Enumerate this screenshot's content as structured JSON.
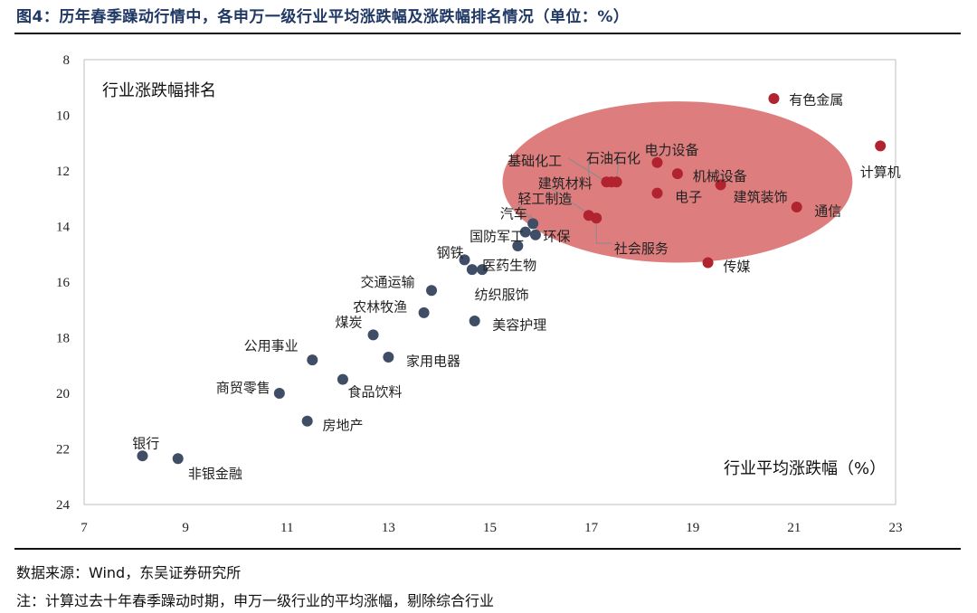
{
  "header": {
    "title": "图4：历年春季躁动行情中，各申万一级行业平均涨跌幅及涨跌幅排名情况（单位：%）"
  },
  "footer": {
    "source": "数据来源：Wind，东吴证券研究所",
    "note": "注：计算过去十年春季躁动时期，申万一级行业的平均涨幅，剔除综合行业"
  },
  "chart_data": {
    "type": "scatter",
    "xlabel": "行业平均涨跌幅（%）",
    "ylabel": "行业涨跌幅排名",
    "xlim": [
      7,
      23
    ],
    "ylim": [
      8,
      24
    ],
    "y_inverted": true,
    "x_ticks": [
      7,
      9,
      11,
      13,
      15,
      17,
      19,
      21,
      23
    ],
    "y_ticks": [
      8,
      10,
      12,
      14,
      16,
      18,
      20,
      22,
      24
    ],
    "grid": false,
    "highlight_ellipse": {
      "cx": 18.7,
      "cy": 12.4,
      "rx": 3.45,
      "ry": 2.9,
      "color": "#d65c5c"
    },
    "colors": {
      "normal": "#3f4d66",
      "highlight": "#b22330"
    },
    "points": [
      {
        "name": "有色金属",
        "x": 20.6,
        "y": 9.4,
        "group": "highlight"
      },
      {
        "name": "计算机",
        "x": 22.7,
        "y": 11.1,
        "group": "highlight"
      },
      {
        "name": "电力设备",
        "x": 18.3,
        "y": 11.7,
        "group": "highlight"
      },
      {
        "name": "机械设备",
        "x": 18.7,
        "y": 12.1,
        "group": "highlight"
      },
      {
        "name": "基础化工",
        "x": 17.3,
        "y": 12.4,
        "group": "highlight"
      },
      {
        "name": "石油石化",
        "x": 17.5,
        "y": 12.4,
        "group": "highlight"
      },
      {
        "name": "建筑材料",
        "x": 17.4,
        "y": 12.4,
        "group": "highlight"
      },
      {
        "name": "建筑装饰",
        "x": 19.55,
        "y": 12.5,
        "group": "highlight"
      },
      {
        "name": "电子",
        "x": 18.3,
        "y": 12.8,
        "group": "highlight"
      },
      {
        "name": "通信",
        "x": 21.05,
        "y": 13.3,
        "group": "highlight"
      },
      {
        "name": "社会服务",
        "x": 16.95,
        "y": 13.6,
        "group": "highlight"
      },
      {
        "name": "社会服务-2",
        "x": 17.1,
        "y": 13.7,
        "group": "highlight"
      },
      {
        "name": "传媒",
        "x": 19.3,
        "y": 15.3,
        "group": "highlight"
      },
      {
        "name": "汽车",
        "x": 15.7,
        "y": 14.2,
        "group": "normal"
      },
      {
        "name": "轻工制造",
        "x": 15.85,
        "y": 13.9,
        "group": "normal"
      },
      {
        "name": "环保",
        "x": 15.9,
        "y": 14.3,
        "group": "normal"
      },
      {
        "name": "国防军工",
        "x": 15.55,
        "y": 14.7,
        "group": "normal"
      },
      {
        "name": "钢铁",
        "x": 14.5,
        "y": 15.2,
        "group": "normal"
      },
      {
        "name": "医药生物",
        "x": 14.65,
        "y": 15.55,
        "group": "normal"
      },
      {
        "name": "纺织服饰",
        "x": 14.85,
        "y": 15.55,
        "group": "normal"
      },
      {
        "name": "交通运输",
        "x": 13.85,
        "y": 16.3,
        "group": "normal"
      },
      {
        "name": "农林牧渔",
        "x": 13.7,
        "y": 17.1,
        "group": "normal"
      },
      {
        "name": "美容护理",
        "x": 14.7,
        "y": 17.4,
        "group": "normal"
      },
      {
        "name": "煤炭",
        "x": 12.7,
        "y": 17.9,
        "group": "normal"
      },
      {
        "name": "家用电器",
        "x": 13.0,
        "y": 18.7,
        "group": "normal"
      },
      {
        "name": "公用事业",
        "x": 11.5,
        "y": 18.8,
        "group": "normal"
      },
      {
        "name": "食品饮料",
        "x": 12.1,
        "y": 19.5,
        "group": "normal"
      },
      {
        "name": "商贸零售",
        "x": 10.85,
        "y": 20.0,
        "group": "normal"
      },
      {
        "name": "房地产",
        "x": 11.4,
        "y": 21.0,
        "group": "normal"
      },
      {
        "name": "银行",
        "x": 8.15,
        "y": 22.25,
        "group": "normal"
      },
      {
        "name": "非银金融",
        "x": 8.85,
        "y": 22.35,
        "group": "normal"
      }
    ],
    "labels": [
      {
        "text": "有色金属",
        "x": 20.9,
        "y": 9.45
      },
      {
        "text": "计算机",
        "x": 22.3,
        "y": 12.05
      },
      {
        "text": "电力设备",
        "x": 18.05,
        "y": 11.25
      },
      {
        "text": "机械设备",
        "x": 19.0,
        "y": 12.2
      },
      {
        "text": "基础化工",
        "x": 15.35,
        "y": 11.65
      },
      {
        "text": "石油石化",
        "x": 16.9,
        "y": 11.55
      },
      {
        "text": "建筑材料",
        "x": 15.95,
        "y": 12.45
      },
      {
        "text": "建筑装饰",
        "x": 19.8,
        "y": 12.95
      },
      {
        "text": "电子",
        "x": 18.65,
        "y": 12.95
      },
      {
        "text": "通信",
        "x": 21.4,
        "y": 13.45
      },
      {
        "text": "社会服务",
        "x": 17.45,
        "y": 14.8
      },
      {
        "text": "传媒",
        "x": 19.6,
        "y": 15.45
      },
      {
        "text": "汽车",
        "x": 15.2,
        "y": 13.55
      },
      {
        "text": "轻工制造",
        "x": 15.55,
        "y": 13.0
      },
      {
        "text": "环保",
        "x": 16.05,
        "y": 14.35
      },
      {
        "text": "国防军工",
        "x": 14.6,
        "y": 14.35
      },
      {
        "text": "钢铁",
        "x": 13.95,
        "y": 14.95
      },
      {
        "text": "医药生物",
        "x": 14.85,
        "y": 15.4
      },
      {
        "text": "纺织服饰",
        "x": 14.7,
        "y": 16.45
      },
      {
        "text": "交通运输",
        "x": 12.45,
        "y": 16.0
      },
      {
        "text": "农林牧渔",
        "x": 12.3,
        "y": 16.9
      },
      {
        "text": "美容护理",
        "x": 15.05,
        "y": 17.55
      },
      {
        "text": "煤炭",
        "x": 11.95,
        "y": 17.45
      },
      {
        "text": "家用电器",
        "x": 13.35,
        "y": 18.85
      },
      {
        "text": "公用事业",
        "x": 10.15,
        "y": 18.3
      },
      {
        "text": "食品饮料",
        "x": 12.2,
        "y": 19.95
      },
      {
        "text": "商贸零售",
        "x": 9.6,
        "y": 19.8
      },
      {
        "text": "房地产",
        "x": 11.7,
        "y": 21.15
      },
      {
        "text": "银行",
        "x": 7.95,
        "y": 21.8
      },
      {
        "text": "非银金融",
        "x": 9.05,
        "y": 22.9
      }
    ],
    "leaders": [
      {
        "x1": 16.55,
        "y1": 11.55,
        "x2": 17.3,
        "y2": 12.4
      },
      {
        "x1": 16.95,
        "y1": 11.55,
        "x2": 16.95,
        "y2": 12.2
      },
      {
        "x1": 17.55,
        "y1": 11.5,
        "x2": 17.5,
        "y2": 12.3
      },
      {
        "x1": 16.15,
        "y1": 12.55,
        "x2": 16.95,
        "y2": 13.55
      },
      {
        "x1": 17.1,
        "y1": 13.7,
        "x2": 17.1,
        "y2": 14.6
      },
      {
        "x1": 17.1,
        "y1": 14.6,
        "x2": 17.4,
        "y2": 14.6
      },
      {
        "x1": 15.55,
        "y1": 13.15,
        "x2": 15.85,
        "y2": 13.85
      },
      {
        "x1": 15.8,
        "y1": 13.55,
        "x2": 15.85,
        "y2": 13.9
      }
    ]
  }
}
